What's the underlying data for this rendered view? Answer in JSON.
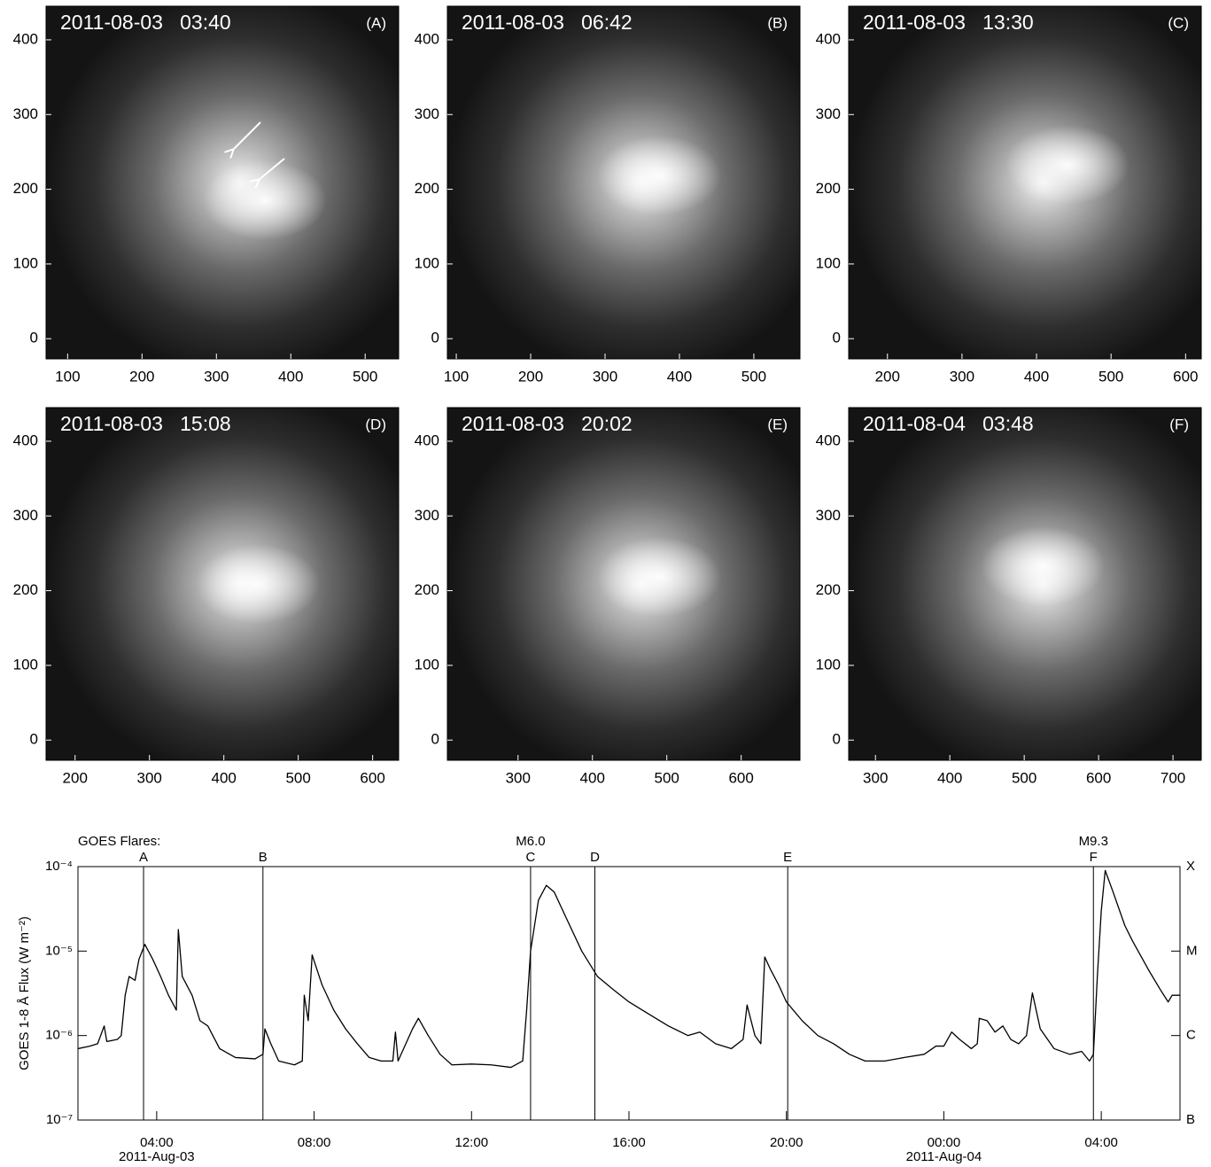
{
  "chart_data": [
    {
      "type": "image",
      "title": "2011-08-03   03:40",
      "label": "(A)",
      "xlim": [
        71,
        545
      ],
      "xticks": [
        100,
        200,
        300,
        400,
        500
      ],
      "ylim": [
        -27,
        445
      ],
      "yticks": [
        0,
        100,
        200,
        300,
        400
      ]
    },
    {
      "type": "image",
      "title": "2011-08-03   06:42",
      "label": "(B)",
      "xlim": [
        88,
        562
      ],
      "xticks": [
        100,
        200,
        300,
        400,
        500
      ],
      "ylim": [
        -27,
        445
      ],
      "yticks": [
        0,
        100,
        200,
        300,
        400
      ]
    },
    {
      "type": "image",
      "title": "2011-08-03   13:30",
      "label": "(C)",
      "xlim": [
        148,
        621
      ],
      "xticks": [
        200,
        300,
        400,
        500,
        600
      ],
      "ylim": [
        -27,
        445
      ],
      "yticks": [
        0,
        100,
        200,
        300,
        400
      ]
    },
    {
      "type": "image",
      "title": "2011-08-03   15:08",
      "label": "(D)",
      "xlim": [
        161,
        635
      ],
      "xticks": [
        200,
        300,
        400,
        500,
        600
      ],
      "ylim": [
        -27,
        445
      ],
      "yticks": [
        0,
        100,
        200,
        300,
        400
      ]
    },
    {
      "type": "image",
      "title": "2011-08-03   20:02",
      "label": "(E)",
      "xlim": [
        205,
        679
      ],
      "xticks": [
        300,
        400,
        500,
        600
      ],
      "ylim": [
        -27,
        445
      ],
      "yticks": [
        0,
        100,
        200,
        300,
        400
      ]
    },
    {
      "type": "image",
      "title": "2011-08-04   03:48",
      "label": "(F)",
      "xlim": [
        264,
        738
      ],
      "xticks": [
        300,
        400,
        500,
        600,
        700
      ],
      "ylim": [
        -27,
        445
      ],
      "yticks": [
        0,
        100,
        200,
        300,
        400
      ]
    },
    {
      "type": "line",
      "ylabel": "GOES 1-8 Å Flux (W m⁻²)",
      "log_y": true,
      "ylim": [
        1e-07,
        0.0001
      ],
      "yticks": [
        {
          "value": 1e-07,
          "label": "10⁻⁷"
        },
        {
          "value": 1e-06,
          "label": "10⁻⁶"
        },
        {
          "value": 1e-05,
          "label": "10⁻⁵"
        },
        {
          "value": 0.0001,
          "label": "10⁻⁴"
        }
      ],
      "y2lim": [
        1e-07,
        0.0001
      ],
      "y2ticks": [
        {
          "value": 1e-07,
          "label": "B"
        },
        {
          "value": 1e-06,
          "label": "C"
        },
        {
          "value": 1e-05,
          "label": "M"
        },
        {
          "value": 0.0001,
          "label": "X"
        }
      ],
      "xlim": [
        "2011-08-03T02:00",
        "2011-08-04T06:00"
      ],
      "xticks": [
        {
          "value": "2011-08-03T04:00",
          "label": "04:00"
        },
        {
          "value": "2011-08-03T08:00",
          "label": "08:00"
        },
        {
          "value": "2011-08-03T12:00",
          "label": "12:00"
        },
        {
          "value": "2011-08-03T16:00",
          "label": "16:00"
        },
        {
          "value": "2011-08-03T20:00",
          "label": "20:00"
        },
        {
          "value": "2011-08-04T00:00",
          "label": "00:00"
        },
        {
          "value": "2011-08-04T04:00",
          "label": "04:00"
        }
      ],
      "date_labels": [
        {
          "value": "2011-08-03T04:00",
          "label": "2011-Aug-03"
        },
        {
          "value": "2011-08-04T00:00",
          "label": "2011-Aug-04"
        }
      ],
      "events_title": "GOES Flares:",
      "events": [
        {
          "value": "2011-08-03T03:40",
          "label": "A"
        },
        {
          "value": "2011-08-03T06:42",
          "label": "B"
        },
        {
          "value": "2011-08-03T13:30",
          "label": "C",
          "class": "M6.0"
        },
        {
          "value": "2011-08-03T15:08",
          "label": "D"
        },
        {
          "value": "2011-08-03T20:02",
          "label": "E"
        },
        {
          "value": "2011-08-04T03:48",
          "label": "F",
          "class": "M9.3"
        }
      ],
      "x": [
        "2011-08-03T02:00",
        "2011-08-03T02:18",
        "2011-08-03T02:30",
        "2011-08-03T02:40",
        "2011-08-03T02:44",
        "2011-08-03T03:00",
        "2011-08-03T03:06",
        "2011-08-03T03:12",
        "2011-08-03T03:18",
        "2011-08-03T03:27",
        "2011-08-03T03:33",
        "2011-08-03T03:42",
        "2011-08-03T03:54",
        "2011-08-03T04:06",
        "2011-08-03T04:18",
        "2011-08-03T04:30",
        "2011-08-03T04:33",
        "2011-08-03T04:39",
        "2011-08-03T04:54",
        "2011-08-03T05:06",
        "2011-08-03T05:18",
        "2011-08-03T05:36",
        "2011-08-03T06:00",
        "2011-08-03T06:30",
        "2011-08-03T06:42",
        "2011-08-03T06:45",
        "2011-08-03T06:54",
        "2011-08-03T07:06",
        "2011-08-03T07:30",
        "2011-08-03T07:42",
        "2011-08-03T07:45",
        "2011-08-03T07:51",
        "2011-08-03T07:57",
        "2011-08-03T08:12",
        "2011-08-03T08:30",
        "2011-08-03T08:48",
        "2011-08-03T09:06",
        "2011-08-03T09:24",
        "2011-08-03T09:42",
        "2011-08-03T10:00",
        "2011-08-03T10:04",
        "2011-08-03T10:08",
        "2011-08-03T10:30",
        "2011-08-03T10:39",
        "2011-08-03T10:54",
        "2011-08-03T11:12",
        "2011-08-03T11:30",
        "2011-08-03T12:00",
        "2011-08-03T12:30",
        "2011-08-03T13:00",
        "2011-08-03T13:18",
        "2011-08-03T13:24",
        "2011-08-03T13:30",
        "2011-08-03T13:42",
        "2011-08-03T13:54",
        "2011-08-03T14:06",
        "2011-08-03T14:24",
        "2011-08-03T14:48",
        "2011-08-03T15:12",
        "2011-08-03T15:36",
        "2011-08-03T16:00",
        "2011-08-03T16:30",
        "2011-08-03T17:00",
        "2011-08-03T17:30",
        "2011-08-03T17:48",
        "2011-08-03T18:12",
        "2011-08-03T18:36",
        "2011-08-03T18:54",
        "2011-08-03T19:00",
        "2011-08-03T19:12",
        "2011-08-03T19:21",
        "2011-08-03T19:27",
        "2011-08-03T19:36",
        "2011-08-03T19:48",
        "2011-08-03T20:00",
        "2011-08-03T20:24",
        "2011-08-03T20:48",
        "2011-08-03T21:12",
        "2011-08-03T21:36",
        "2011-08-03T22:00",
        "2011-08-03T22:30",
        "2011-08-03T23:00",
        "2011-08-03T23:30",
        "2011-08-03T23:48",
        "2011-08-04T00:00",
        "2011-08-04T00:12",
        "2011-08-04T00:24",
        "2011-08-04T00:42",
        "2011-08-04T00:51",
        "2011-08-04T00:54",
        "2011-08-04T01:06",
        "2011-08-04T01:18",
        "2011-08-04T01:30",
        "2011-08-04T01:42",
        "2011-08-04T01:54",
        "2011-08-04T02:06",
        "2011-08-04T02:15",
        "2011-08-04T02:27",
        "2011-08-04T02:48",
        "2011-08-04T03:12",
        "2011-08-04T03:30",
        "2011-08-04T03:42",
        "2011-08-04T03:48",
        "2011-08-04T03:54",
        "2011-08-04T04:00",
        "2011-08-04T04:06",
        "2011-08-04T04:18",
        "2011-08-04T04:36",
        "2011-08-04T04:48",
        "2011-08-04T05:12",
        "2011-08-04T05:30",
        "2011-08-04T05:42",
        "2011-08-04T05:48",
        "2011-08-04T06:00"
      ],
      "series": [
        {
          "color": "#000000",
          "values": [
            7e-07,
            7.5e-07,
            8e-07,
            1.3e-06,
            8.5e-07,
            9e-07,
            1e-06,
            3e-06,
            5e-06,
            4.5e-06,
            8e-06,
            1.2e-05,
            8e-06,
            5e-06,
            3e-06,
            2e-06,
            1.8e-05,
            5e-06,
            3e-06,
            1.5e-06,
            1.3e-06,
            7e-07,
            5.5e-07,
            5.3e-07,
            6e-07,
            1.2e-06,
            8e-07,
            5e-07,
            4.5e-07,
            5e-07,
            3e-06,
            1.5e-06,
            9e-06,
            4e-06,
            2e-06,
            1.2e-06,
            8e-07,
            5.5e-07,
            5e-07,
            5e-07,
            1.1e-06,
            5e-07,
            1.2e-06,
            1.6e-06,
            1e-06,
            6e-07,
            4.5e-07,
            4.6e-07,
            4.5e-07,
            4.2e-07,
            5e-07,
            2e-06,
            1e-05,
            4e-05,
            6e-05,
            5e-05,
            2.5e-05,
            1e-05,
            5e-06,
            3.5e-06,
            2.5e-06,
            1.8e-06,
            1.3e-06,
            1e-06,
            1.1e-06,
            8e-07,
            7e-07,
            9e-07,
            2.3e-06,
            1e-06,
            8e-07,
            8.5e-06,
            6e-06,
            4e-06,
            2.5e-06,
            1.5e-06,
            1e-06,
            8e-07,
            6e-07,
            5e-07,
            5e-07,
            5.5e-07,
            6e-07,
            7.5e-07,
            7.5e-07,
            1.1e-06,
            9e-07,
            7e-07,
            8e-07,
            1.6e-06,
            1.5e-06,
            1.1e-06,
            1.3e-06,
            9e-07,
            8e-07,
            1e-06,
            3.2e-06,
            1.2e-06,
            7e-07,
            6e-07,
            6.5e-07,
            5e-07,
            6e-07,
            5e-06,
            3e-05,
            9e-05,
            5e-05,
            2e-05,
            1.3e-05,
            6e-06,
            3.5e-06,
            2.5e-06,
            3e-06,
            3e-06
          ]
        }
      ]
    }
  ]
}
